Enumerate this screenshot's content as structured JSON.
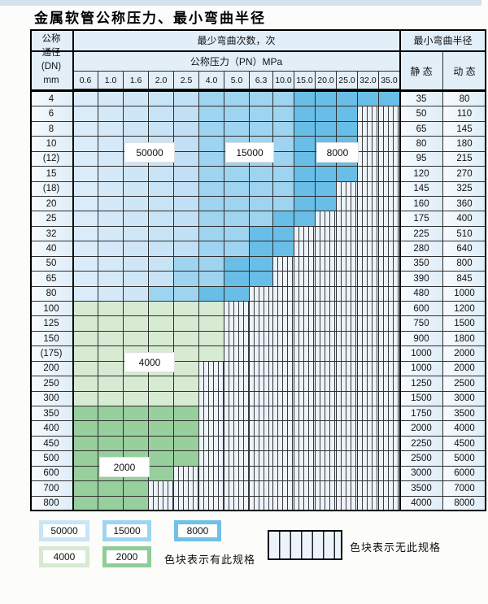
{
  "title": "金属软管公称压力、最小弯曲半径",
  "table": {
    "header": {
      "dn_lines": [
        "公称",
        "通径",
        "(DN)",
        "mm"
      ],
      "cycles_header": "最少弯曲次数，次",
      "pressure_header": "公称压力（PN）MPa",
      "pressure_cols": [
        "0.6",
        "1.0",
        "1.6",
        "2.0",
        "2.5",
        "4.0",
        "5.0",
        "6.3",
        "10.0",
        "15.0",
        "20.0",
        "25.0",
        "32.0",
        "35.0"
      ],
      "radius_header": "最小弯曲半径",
      "static_label": "静 态",
      "dynamic_label": "动 态"
    },
    "rows": [
      {
        "dn": "4",
        "zone": "blue",
        "max_col": 13,
        "static": "35",
        "dynamic": "80"
      },
      {
        "dn": "6",
        "zone": "blue",
        "max_col": 11,
        "static": "50",
        "dynamic": "110"
      },
      {
        "dn": "8",
        "zone": "blue",
        "max_col": 11,
        "static": "65",
        "dynamic": "145"
      },
      {
        "dn": "10",
        "zone": "blue",
        "max_col": 11,
        "static": "80",
        "dynamic": "180"
      },
      {
        "dn": "(12)",
        "zone": "blue",
        "max_col": 11,
        "static": "95",
        "dynamic": "215"
      },
      {
        "dn": "15",
        "zone": "blue",
        "max_col": 11,
        "static": "120",
        "dynamic": "270"
      },
      {
        "dn": "(18)",
        "zone": "blue",
        "max_col": 10,
        "static": "145",
        "dynamic": "325"
      },
      {
        "dn": "20",
        "zone": "blue",
        "max_col": 10,
        "static": "160",
        "dynamic": "360"
      },
      {
        "dn": "25",
        "zone": "blue",
        "max_col": 9,
        "static": "175",
        "dynamic": "400"
      },
      {
        "dn": "32",
        "zone": "blue",
        "max_col": 8,
        "static": "225",
        "dynamic": "510"
      },
      {
        "dn": "40",
        "zone": "blue",
        "max_col": 8,
        "static": "280",
        "dynamic": "640"
      },
      {
        "dn": "50",
        "zone": "blue",
        "max_col": 7,
        "static": "350",
        "dynamic": "800"
      },
      {
        "dn": "65",
        "zone": "blue",
        "max_col": 7,
        "static": "390",
        "dynamic": "845"
      },
      {
        "dn": "80",
        "zone": "blue",
        "max_col": 6,
        "static": "480",
        "dynamic": "1000"
      },
      {
        "dn": "100",
        "zone": "green_pale",
        "max_col": 5,
        "static": "600",
        "dynamic": "1200"
      },
      {
        "dn": "125",
        "zone": "green_pale",
        "max_col": 5,
        "static": "750",
        "dynamic": "1500"
      },
      {
        "dn": "150",
        "zone": "green_pale",
        "max_col": 5,
        "static": "900",
        "dynamic": "1800"
      },
      {
        "dn": "(175)",
        "zone": "green_pale",
        "max_col": 5,
        "static": "1000",
        "dynamic": "2000"
      },
      {
        "dn": "200",
        "zone": "green_pale",
        "max_col": 4,
        "static": "1000",
        "dynamic": "2000"
      },
      {
        "dn": "250",
        "zone": "green_pale",
        "max_col": 4,
        "static": "1250",
        "dynamic": "2500"
      },
      {
        "dn": "300",
        "zone": "green_pale",
        "max_col": 4,
        "static": "1500",
        "dynamic": "3000"
      },
      {
        "dn": "350",
        "zone": "green_mid",
        "max_col": 4,
        "static": "1750",
        "dynamic": "3500"
      },
      {
        "dn": "400",
        "zone": "green_mid",
        "max_col": 4,
        "static": "2000",
        "dynamic": "4000"
      },
      {
        "dn": "450",
        "zone": "green_mid",
        "max_col": 4,
        "static": "2250",
        "dynamic": "4500"
      },
      {
        "dn": "500",
        "zone": "green_mid",
        "max_col": 4,
        "static": "2500",
        "dynamic": "5000"
      },
      {
        "dn": "600",
        "zone": "green_mid",
        "max_col": 3,
        "static": "3000",
        "dynamic": "6000"
      },
      {
        "dn": "700",
        "zone": "green_mid",
        "max_col": 2,
        "static": "3500",
        "dynamic": "7000"
      },
      {
        "dn": "800",
        "zone": "green_mid",
        "max_col": 2,
        "static": "4000",
        "dynamic": "8000"
      }
    ],
    "cycle_labels": [
      {
        "label": "50000",
        "col_start": 2,
        "col_end": 3,
        "row_start": 3,
        "row_end": 4
      },
      {
        "label": "15000",
        "col_start": 6,
        "col_end": 7,
        "row_start": 3,
        "row_end": 4
      },
      {
        "label": "8000",
        "col_start": 10,
        "col_end": 11,
        "row_start": 3,
        "row_end": 4
      },
      {
        "label": "4000",
        "col_start": 2,
        "col_end": 3,
        "row_start": 17,
        "row_end": 18
      },
      {
        "label": "2000",
        "col_start": 1,
        "col_end": 2,
        "row_start": 24,
        "row_end": 25
      }
    ]
  },
  "legend": {
    "items": [
      {
        "label": "50000",
        "color_key": "legend_blue_pale"
      },
      {
        "label": "15000",
        "color_key": "legend_blue_mid"
      },
      {
        "label": "8000",
        "color_key": "legend_blue_strong"
      },
      {
        "label": "4000",
        "color_key": "legend_green_pale"
      },
      {
        "label": "2000",
        "color_key": "legend_green_mid"
      }
    ],
    "has_spec_text": "色块表示有此规格",
    "no_spec_text": "色块表示无此规格"
  },
  "colors": {
    "strong_blue": "#68bee7",
    "mid_blue": "#9ed4f0",
    "pale_blues": [
      "#daecf9",
      "#d5e9f8",
      "#cfe6f7",
      "#c8e3f6",
      "#c2e0f5"
    ],
    "pale_green": "#d7ebd3",
    "mid_green": "#97cf9d",
    "legend_blue_pale": "#c9e5f6",
    "legend_blue_mid": "#9fd4f0",
    "legend_blue_strong": "#6fc1e8",
    "legend_green_pale": "#d6ead2",
    "legend_green_mid": "#90cc98",
    "hatch_bg": "#edf3fa",
    "hatch_line": "#3c3c3c",
    "grid": "#2f2f2f",
    "header_bg": "#e2eef8",
    "label_col_bg_a": "#f7fbfe",
    "label_col_bg_b": "#dfedf8",
    "top_strip": "#d3e2ec",
    "page_bg": "#fcfcfa"
  }
}
